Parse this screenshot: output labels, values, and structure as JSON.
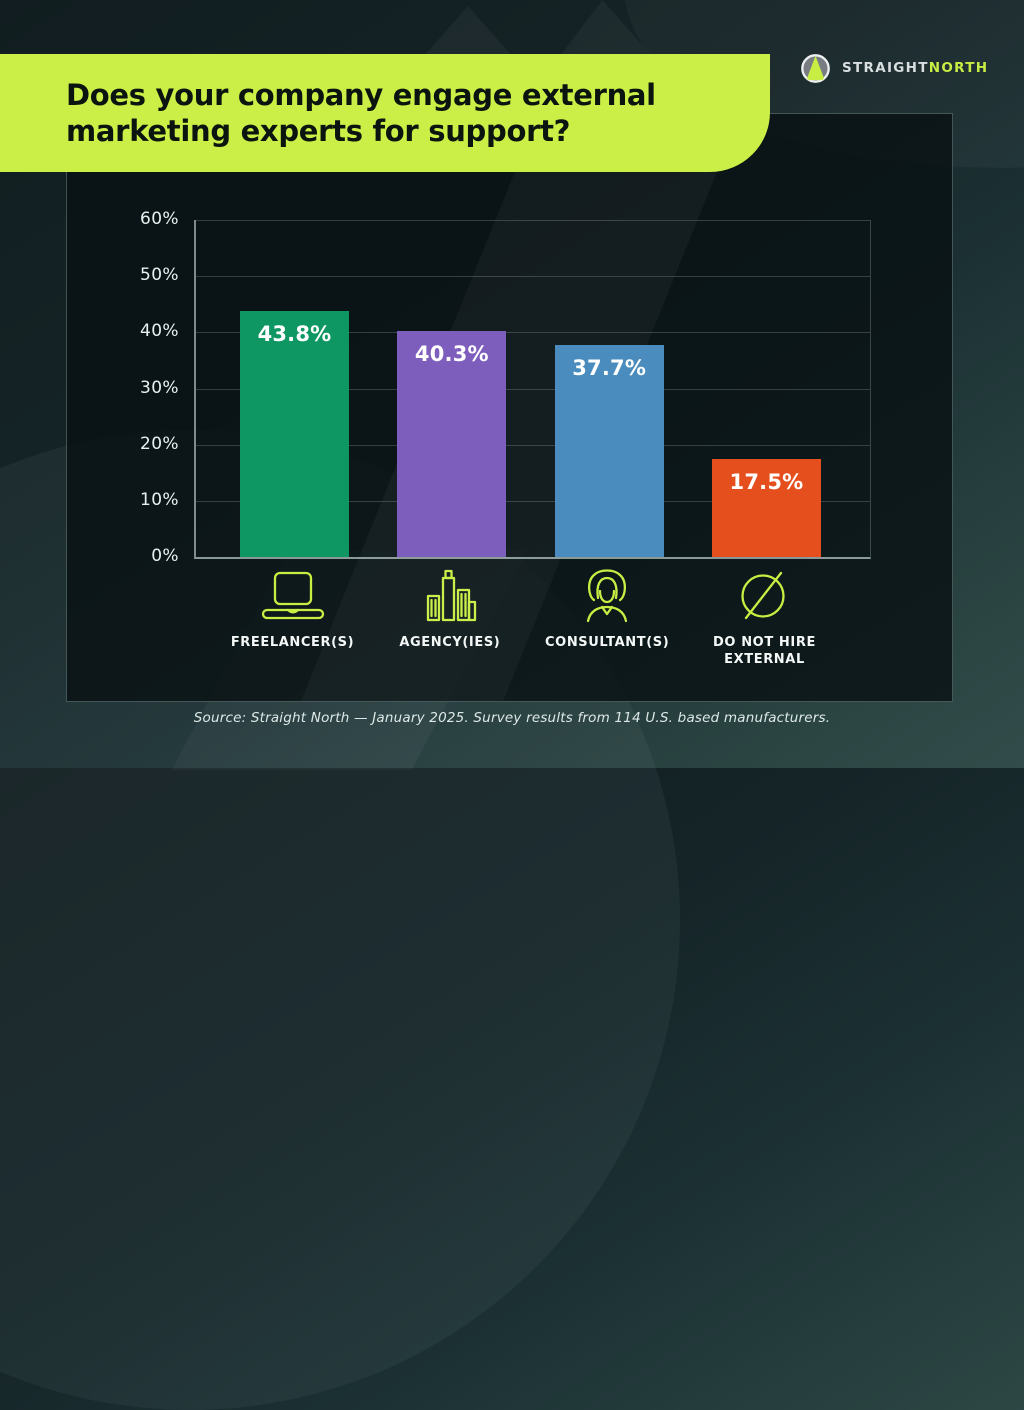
{
  "header": {
    "title_lines": [
      "Does your company engage external",
      "marketing experts for support?"
    ]
  },
  "brand": {
    "straight": "STRAIGHT",
    "north": "NORTH"
  },
  "footer": {
    "source": "Source: Straight North — January 2025. Survey results from 114 U.S. based manufacturers."
  },
  "colors": {
    "accent_lime": "#cbef46",
    "banner_text": "#0b140e",
    "panel_bg": "#0a1214",
    "background_teal": "#1c3134"
  },
  "chart_data": {
    "type": "bar",
    "title": "Does your company engage external marketing experts for support?",
    "categories": [
      "FREELANCER(S)",
      "AGENCY(IES)",
      "CONSULTANT(S)",
      "DO NOT HIRE EXTERNAL"
    ],
    "values": [
      43.8,
      40.3,
      37.7,
      17.5
    ],
    "value_labels": [
      "43.8%",
      "40.3%",
      "37.7%",
      "17.5%"
    ],
    "bar_colors": [
      "#0f9763",
      "#7e5ebc",
      "#4a8cbd",
      "#e54e1d"
    ],
    "category_icons": [
      "laptop-icon",
      "buildings-icon",
      "person-icon",
      "no-symbol-icon"
    ],
    "xlabel": "",
    "ylabel": "",
    "ylim": [
      0,
      60
    ],
    "yticks": [
      "60%",
      "50%",
      "40%",
      "30%",
      "20%",
      "10%",
      "0%"
    ],
    "ytick_values": [
      60,
      50,
      40,
      30,
      20,
      10,
      0
    ],
    "grid": true,
    "legend": false
  }
}
